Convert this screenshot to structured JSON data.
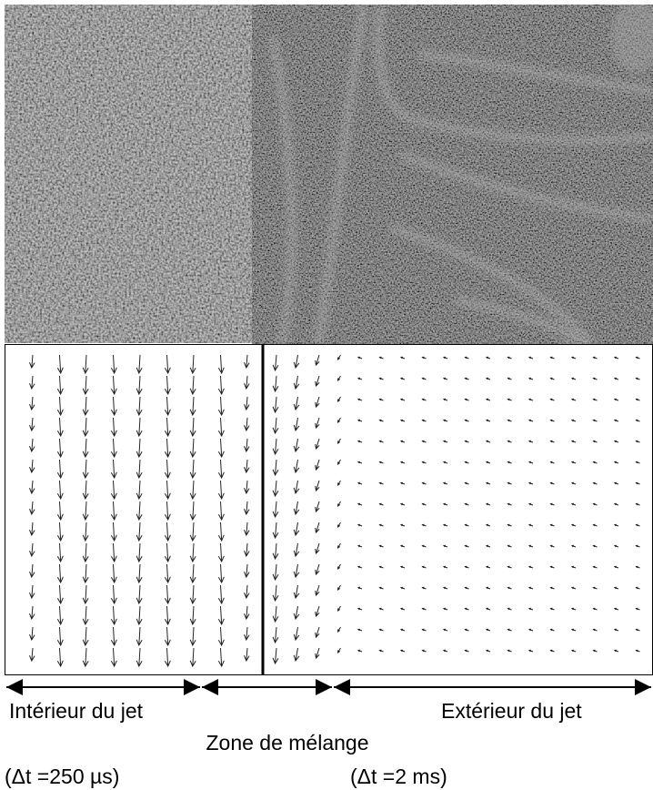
{
  "labels": {
    "inside": "Intérieur du jet",
    "mixing": "Zone de mélange",
    "outside": "Extérieur du jet",
    "dt_inside": "(Δt =250 µs)",
    "dt_outside": "(Δt =2 ms)"
  }
}
